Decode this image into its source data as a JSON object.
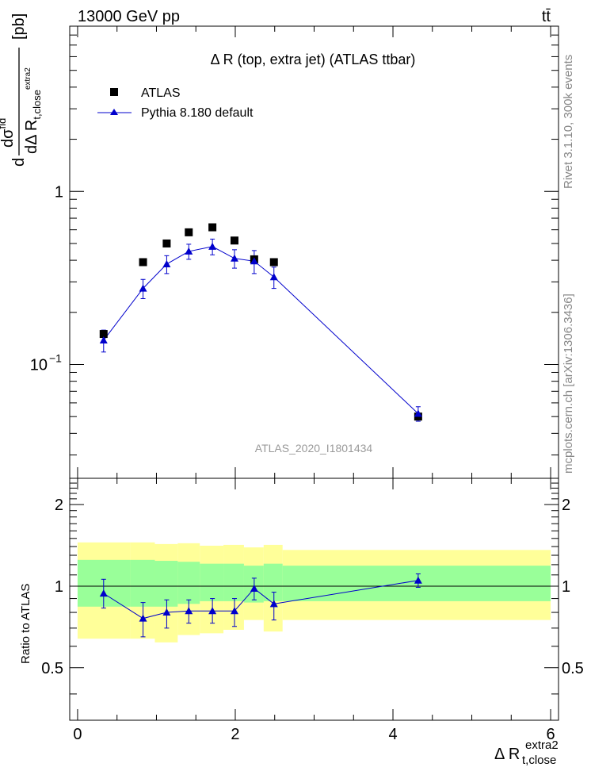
{
  "header": {
    "energy_label": "13000 GeV pp",
    "process_label": "tt̄"
  },
  "side_labels": {
    "rivet": "Rivet 3.1.10,  300k events",
    "mcplots": "mcplots.cern.ch [arXiv:1306.3436]"
  },
  "chart_data": [
    {
      "type": "scatter",
      "title": "Δ R (top, extra jet) (ATLAS ttbar)",
      "analysis_label": "ATLAS_2020_I1801434",
      "ylabel": {
        "d1": "d",
        "sigma": "dσ",
        "sigma_sup": "fid",
        "denom": "dΔ R",
        "denom_sub": "t,close",
        "denom_sup": "extra2",
        "unit": "[pb]"
      },
      "y_scale": "log",
      "ylim": [
        0.022,
        9
      ],
      "xlim": [
        -0.1,
        6.1
      ],
      "y_ticks": [
        "1",
        "10"
      ],
      "y_tick_exp": "−1",
      "legend_placement": "top-left",
      "series": [
        {
          "name": "ATLAS",
          "color": "#000000",
          "marker": "square",
          "x": [
            0.33,
            0.83,
            1.13,
            1.41,
            1.71,
            1.99,
            2.24,
            2.49,
            4.32
          ],
          "y": [
            0.15,
            0.39,
            0.5,
            0.58,
            0.62,
            0.52,
            0.405,
            0.39,
            0.05
          ]
        },
        {
          "name": "Pythia 8.180 default",
          "color": "#0000cc",
          "marker": "triangle",
          "x": [
            0.33,
            0.83,
            1.13,
            1.41,
            1.71,
            1.99,
            2.24,
            2.49,
            4.32
          ],
          "y": [
            0.138,
            0.275,
            0.38,
            0.45,
            0.48,
            0.41,
            0.395,
            0.32,
            0.052
          ],
          "yerr_low": [
            0.02,
            0.035,
            0.045,
            0.045,
            0.05,
            0.05,
            0.06,
            0.045,
            0.005
          ],
          "yerr_high": [
            0.02,
            0.035,
            0.045,
            0.045,
            0.05,
            0.05,
            0.06,
            0.045,
            0.005
          ]
        }
      ]
    },
    {
      "type": "line",
      "ylabel": "Ratio to ATLAS",
      "xlabel": "Δ R",
      "xlabel_sub": "t,close",
      "xlabel_sup": "extra2",
      "xlim": [
        -0.1,
        6.1
      ],
      "ylim": [
        0.32,
        2.5
      ],
      "x_ticks": [
        "0",
        "2",
        "4",
        "6"
      ],
      "y_ticks": [
        "0.5",
        "1",
        "2"
      ],
      "bands": {
        "edges": [
          0,
          0.67,
          0.98,
          1.27,
          1.55,
          1.85,
          2.11,
          2.36,
          2.6,
          6
        ],
        "yellow_low": [
          0.64,
          0.64,
          0.62,
          0.66,
          0.67,
          0.69,
          0.75,
          0.68,
          0.75
        ],
        "yellow_high": [
          1.45,
          1.45,
          1.43,
          1.44,
          1.41,
          1.42,
          1.39,
          1.42,
          1.36
        ],
        "green_low": [
          0.84,
          0.84,
          0.84,
          0.86,
          0.88,
          0.88,
          0.87,
          0.88,
          0.88
        ],
        "green_high": [
          1.25,
          1.25,
          1.24,
          1.23,
          1.21,
          1.21,
          1.19,
          1.21,
          1.19
        ],
        "yellow_color": "#ffff99",
        "green_color": "#99ff99"
      },
      "series": [
        {
          "name": "Pythia 8.180 default",
          "color": "#0000cc",
          "x": [
            0.33,
            0.83,
            1.13,
            1.41,
            1.71,
            1.99,
            2.24,
            2.49,
            4.32
          ],
          "y": [
            0.94,
            0.76,
            0.8,
            0.81,
            0.81,
            0.81,
            0.98,
            0.86,
            1.05
          ],
          "yerr_low": [
            0.11,
            0.11,
            0.1,
            0.08,
            0.08,
            0.1,
            0.09,
            0.11,
            0.06
          ],
          "yerr_high": [
            0.12,
            0.11,
            0.09,
            0.08,
            0.09,
            0.09,
            0.09,
            0.09,
            0.06
          ]
        }
      ]
    }
  ]
}
